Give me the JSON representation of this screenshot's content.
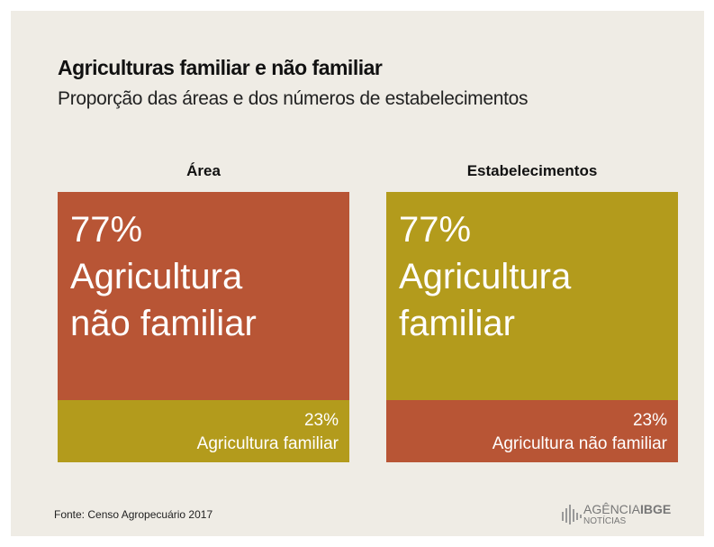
{
  "title": "Agriculturas familiar e não familiar",
  "subtitle": "Proporção das áreas e dos números de estabelecimentos",
  "source": "Fonte: Censo  Agropecuário  2017",
  "brand": {
    "name": "AGÊNCIA",
    "strong": "IBGE",
    "sub": "NOTÍCIAS"
  },
  "chart_data": [
    {
      "type": "stacked_bar",
      "title": "Área",
      "ylim": [
        0,
        100
      ],
      "series": [
        {
          "name": "Agricultura não familiar",
          "color": "#b85535",
          "values": [
            77
          ],
          "value_labels": [
            "77%"
          ]
        },
        {
          "name": "Agricultura familiar",
          "color": "#b39b1c",
          "values": [
            23
          ],
          "value_labels": [
            "23%"
          ]
        }
      ]
    },
    {
      "type": "stacked_bar",
      "title": "Estabelecimentos",
      "ylim": [
        0,
        100
      ],
      "series": [
        {
          "name": "Agricultura familiar",
          "color": "#b39b1c",
          "values": [
            77
          ],
          "value_labels": [
            "77%"
          ]
        },
        {
          "name": "Agricultura não familiar",
          "color": "#b85535",
          "values": [
            23
          ],
          "value_labels": [
            "23%"
          ]
        }
      ]
    }
  ]
}
